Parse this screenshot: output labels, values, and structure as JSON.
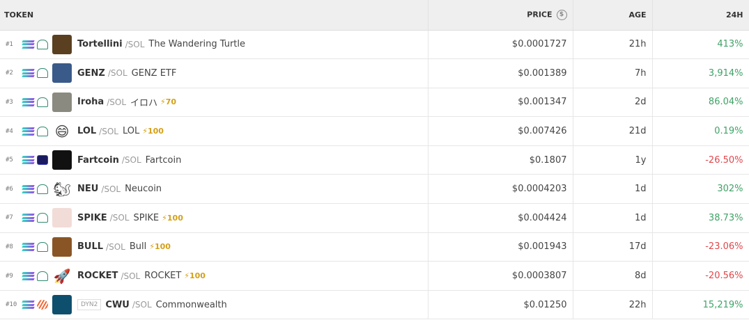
{
  "header": {
    "token": "TOKEN",
    "price": "PRICE",
    "price_icon": "dollar-circle-icon",
    "age": "AGE",
    "change": "24H"
  },
  "colors": {
    "positive": "#3fa266",
    "negative": "#e0474c",
    "boost": "#d4a017"
  },
  "rows": [
    {
      "rank": "#1",
      "symbol": "Tortellini",
      "pair": "/SOL",
      "name": "The Wandering Turtle",
      "boost": "",
      "tag": "",
      "dex": "dex",
      "avatar": "#5a4020",
      "emoji": "",
      "price": "$0.0001727",
      "age": "21h",
      "change": "413%",
      "dir": "pos"
    },
    {
      "rank": "#2",
      "symbol": "GENZ",
      "pair": "/SOL",
      "name": "GENZ ETF",
      "boost": "",
      "tag": "",
      "dex": "dex",
      "avatar": "#3a5a8a",
      "emoji": "",
      "price": "$0.001389",
      "age": "7h",
      "change": "3,914%",
      "dir": "pos"
    },
    {
      "rank": "#3",
      "symbol": "Iroha",
      "pair": "/SOL",
      "name": "イロハ",
      "boost": "⚡70",
      "tag": "",
      "dex": "dex",
      "avatar": "#8a8a80",
      "emoji": "",
      "price": "$0.001347",
      "age": "2d",
      "change": "86.04%",
      "dir": "pos"
    },
    {
      "rank": "#4",
      "symbol": "LOL",
      "pair": "/SOL",
      "name": "LOL",
      "boost": "⚡100",
      "tag": "",
      "dex": "dex",
      "avatar": "transparent",
      "emoji": "😄",
      "price": "$0.007426",
      "age": "21d",
      "change": "0.19%",
      "dir": "pos"
    },
    {
      "rank": "#5",
      "symbol": "Fartcoin",
      "pair": "/SOL",
      "name": "Fartcoin",
      "boost": "",
      "tag": "",
      "dex": "other",
      "avatar": "#111111",
      "emoji": "",
      "price": "$0.1807",
      "age": "1y",
      "change": "-26.50%",
      "dir": "neg"
    },
    {
      "rank": "#6",
      "symbol": "NEU",
      "pair": "/SOL",
      "name": "Neucoin",
      "boost": "",
      "tag": "",
      "dex": "dex",
      "avatar": "transparent",
      "emoji": "🐿",
      "price": "$0.0004203",
      "age": "1d",
      "change": "302%",
      "dir": "pos"
    },
    {
      "rank": "#7",
      "symbol": "SPIKE",
      "pair": "/SOL",
      "name": "SPIKE",
      "boost": "⚡100",
      "tag": "",
      "dex": "dex",
      "avatar": "#f2dcd8",
      "emoji": "",
      "price": "$0.004424",
      "age": "1d",
      "change": "38.73%",
      "dir": "pos"
    },
    {
      "rank": "#8",
      "symbol": "BULL",
      "pair": "/SOL",
      "name": "Bull",
      "boost": "⚡100",
      "tag": "",
      "dex": "dex",
      "avatar": "#8a5526",
      "emoji": "",
      "price": "$0.001943",
      "age": "17d",
      "change": "-23.06%",
      "dir": "neg"
    },
    {
      "rank": "#9",
      "symbol": "ROCKET",
      "pair": "/SOL",
      "name": "ROCKET",
      "boost": "⚡100",
      "tag": "",
      "dex": "dex",
      "avatar": "transparent",
      "emoji": "🚀",
      "price": "$0.0003807",
      "age": "8d",
      "change": "-20.56%",
      "dir": "neg"
    },
    {
      "rank": "#10",
      "symbol": "CWU",
      "pair": "/SOL",
      "name": "Commonwealth",
      "boost": "",
      "tag": "DYN2",
      "dex": "dyn",
      "avatar": "#0f4f6e",
      "emoji": "",
      "price": "$0.01250",
      "age": "22h",
      "change": "15,219%",
      "dir": "pos"
    }
  ]
}
